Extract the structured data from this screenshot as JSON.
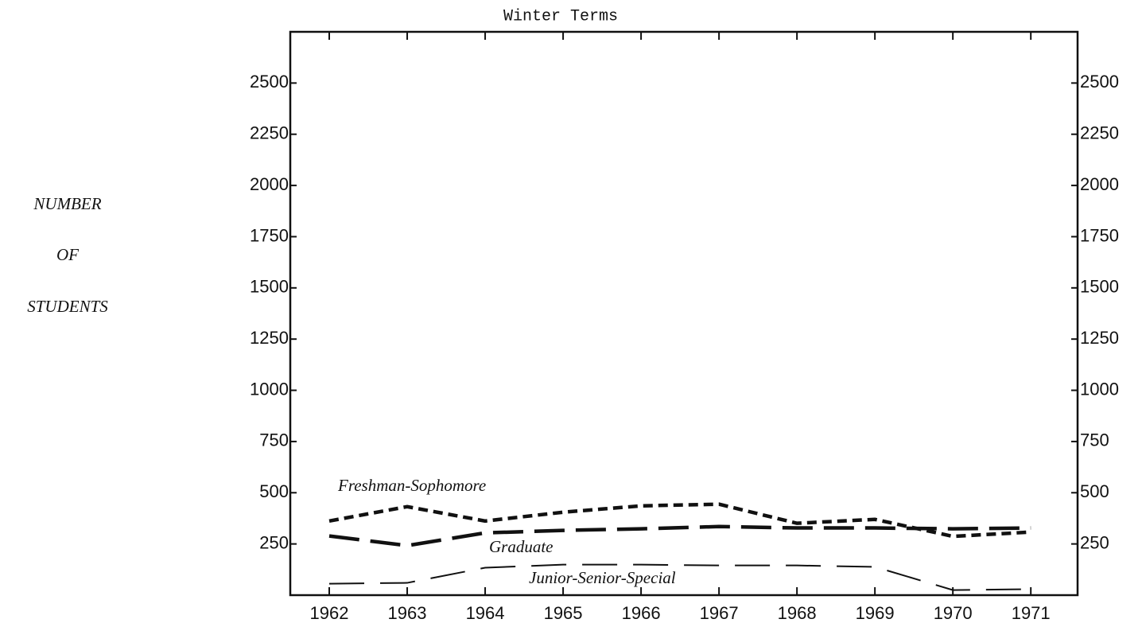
{
  "chart_data": {
    "type": "line",
    "title": "Winter Terms",
    "ylabel": [
      "NUMBER",
      "OF",
      "STUDENTS"
    ],
    "x": [
      1962,
      1963,
      1964,
      1965,
      1966,
      1967,
      1968,
      1969,
      1970,
      1971
    ],
    "xlim": [
      1961.5,
      1971.6
    ],
    "xticks": [
      1962,
      1963,
      1964,
      1965,
      1966,
      1967,
      1968,
      1969,
      1970,
      1971
    ],
    "ylim": [
      0,
      2750
    ],
    "yticks": [
      250,
      500,
      750,
      1000,
      1250,
      1500,
      1750,
      2000,
      2250,
      2500
    ],
    "y2lim": [
      0,
      2750
    ],
    "y2ticks": [
      250,
      500,
      750,
      1000,
      1250,
      1500,
      1750,
      2000,
      2250,
      2500
    ],
    "grid": false,
    "series": [
      {
        "name": "Freshman-Sophomore",
        "color": "#111111",
        "values": [
          362,
          432,
          362,
          405,
          436,
          444,
          351,
          370,
          287,
          308
        ]
      },
      {
        "name": "Graduate",
        "color": "#111111",
        "values": [
          289,
          242,
          304,
          316,
          324,
          335,
          328,
          328,
          324,
          328
        ]
      },
      {
        "name": "Junior-Senior-Special",
        "color": "#111111",
        "values": [
          56,
          60,
          134,
          149,
          149,
          145,
          145,
          138,
          25,
          29
        ]
      }
    ]
  }
}
